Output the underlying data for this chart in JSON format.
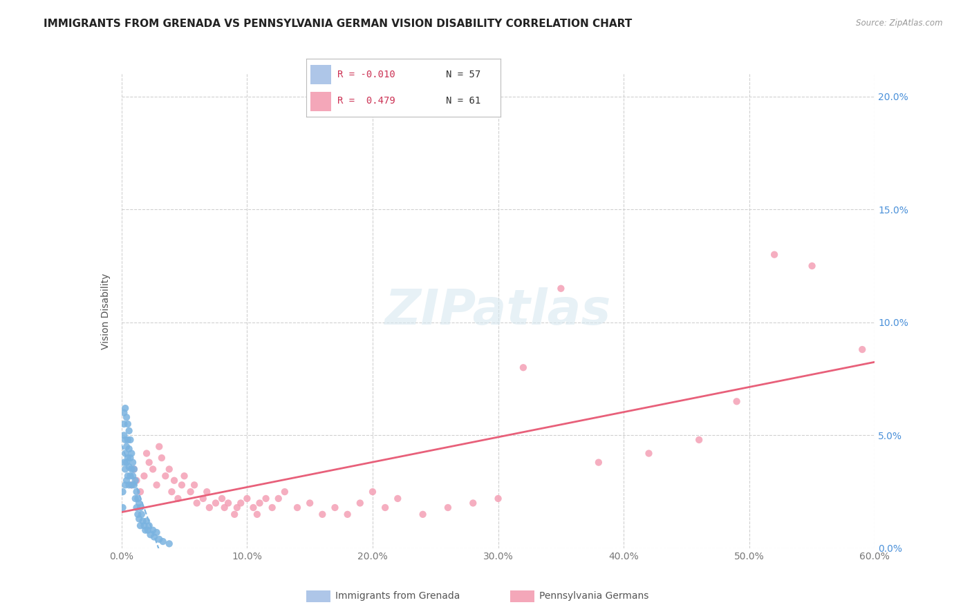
{
  "title": "IMMIGRANTS FROM GRENADA VS PENNSYLVANIA GERMAN VISION DISABILITY CORRELATION CHART",
  "source": "Source: ZipAtlas.com",
  "ylabel": "Vision Disability",
  "xlim": [
    0.0,
    0.6
  ],
  "ylim": [
    0.0,
    0.21
  ],
  "xticks": [
    0.0,
    0.1,
    0.2,
    0.3,
    0.4,
    0.5,
    0.6
  ],
  "yticks": [
    0.0,
    0.05,
    0.1,
    0.15,
    0.2
  ],
  "xticklabels": [
    "0.0%",
    "10.0%",
    "20.0%",
    "30.0%",
    "40.0%",
    "50.0%",
    "60.0%"
  ],
  "yticklabels": [
    "0.0%",
    "5.0%",
    "10.0%",
    "15.0%",
    "20.0%"
  ],
  "grenada_color": "#7ab3e0",
  "pennsylvania_color": "#f4a0b5",
  "grenada_line_color": "#7ab3e0",
  "pennsylvania_line_color": "#e8607a",
  "grid_color": "#d0d0d0",
  "background_color": "#ffffff",
  "tick_color": "#4a90d9",
  "xtick_color": "#777777",
  "title_fontsize": 11,
  "tick_fontsize": 10,
  "legend_r1": "R = -0.010",
  "legend_n1": "N = 57",
  "legend_r2": "R =  0.479",
  "legend_n2": "N = 61",
  "legend_color1": "#aec6e8",
  "legend_color2": "#f4a7b9",
  "bottom_legend1": "Immigrants from Grenada",
  "bottom_legend2": "Pennsylvania Germans",
  "watermark": "ZIPatlas",
  "grenada_x": [
    0.001,
    0.001,
    0.002,
    0.002,
    0.002,
    0.002,
    0.003,
    0.003,
    0.003,
    0.003,
    0.003,
    0.004,
    0.004,
    0.004,
    0.004,
    0.005,
    0.005,
    0.005,
    0.005,
    0.006,
    0.006,
    0.006,
    0.006,
    0.007,
    0.007,
    0.007,
    0.008,
    0.008,
    0.008,
    0.009,
    0.009,
    0.01,
    0.01,
    0.011,
    0.011,
    0.012,
    0.012,
    0.013,
    0.013,
    0.014,
    0.014,
    0.015,
    0.015,
    0.016,
    0.017,
    0.018,
    0.019,
    0.02,
    0.021,
    0.022,
    0.023,
    0.025,
    0.026,
    0.028,
    0.03,
    0.033,
    0.038
  ],
  "grenada_y": [
    0.025,
    0.018,
    0.06,
    0.055,
    0.05,
    0.038,
    0.048,
    0.062,
    0.042,
    0.035,
    0.028,
    0.058,
    0.045,
    0.038,
    0.03,
    0.055,
    0.048,
    0.04,
    0.032,
    0.052,
    0.044,
    0.036,
    0.028,
    0.048,
    0.04,
    0.032,
    0.042,
    0.035,
    0.028,
    0.038,
    0.032,
    0.035,
    0.028,
    0.03,
    0.022,
    0.025,
    0.018,
    0.022,
    0.015,
    0.02,
    0.013,
    0.018,
    0.01,
    0.015,
    0.012,
    0.01,
    0.008,
    0.012,
    0.008,
    0.01,
    0.006,
    0.008,
    0.005,
    0.007,
    0.004,
    0.003,
    0.002
  ],
  "penn_x": [
    0.008,
    0.01,
    0.012,
    0.015,
    0.018,
    0.02,
    0.022,
    0.025,
    0.028,
    0.03,
    0.032,
    0.035,
    0.038,
    0.04,
    0.042,
    0.045,
    0.048,
    0.05,
    0.055,
    0.058,
    0.06,
    0.065,
    0.068,
    0.07,
    0.075,
    0.08,
    0.082,
    0.085,
    0.09,
    0.092,
    0.095,
    0.1,
    0.105,
    0.108,
    0.11,
    0.115,
    0.12,
    0.125,
    0.13,
    0.14,
    0.15,
    0.16,
    0.17,
    0.18,
    0.19,
    0.2,
    0.21,
    0.22,
    0.24,
    0.26,
    0.28,
    0.3,
    0.32,
    0.35,
    0.38,
    0.42,
    0.46,
    0.49,
    0.52,
    0.55,
    0.59
  ],
  "penn_y": [
    0.028,
    0.035,
    0.03,
    0.025,
    0.032,
    0.042,
    0.038,
    0.035,
    0.028,
    0.045,
    0.04,
    0.032,
    0.035,
    0.025,
    0.03,
    0.022,
    0.028,
    0.032,
    0.025,
    0.028,
    0.02,
    0.022,
    0.025,
    0.018,
    0.02,
    0.022,
    0.018,
    0.02,
    0.015,
    0.018,
    0.02,
    0.022,
    0.018,
    0.015,
    0.02,
    0.022,
    0.018,
    0.022,
    0.025,
    0.018,
    0.02,
    0.015,
    0.018,
    0.015,
    0.02,
    0.025,
    0.018,
    0.022,
    0.015,
    0.018,
    0.02,
    0.022,
    0.08,
    0.115,
    0.038,
    0.042,
    0.048,
    0.065,
    0.13,
    0.125,
    0.088
  ]
}
